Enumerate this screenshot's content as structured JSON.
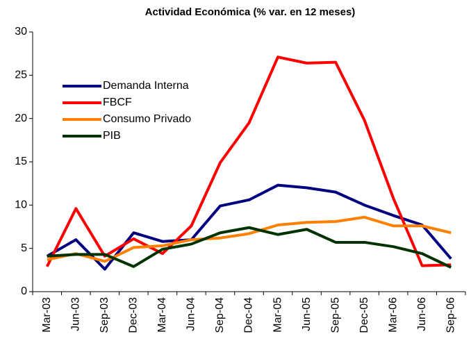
{
  "chart_data": {
    "type": "line",
    "title": "Actividad Económica (% var. en 12 meses)",
    "categories": [
      "Mar-03",
      "Jun-03",
      "Sep-03",
      "Dec-03",
      "Mar-04",
      "Jun-04",
      "Sep-04",
      "Dec-04",
      "Mar-05",
      "Jun-05",
      "Sep-05",
      "Dec-05",
      "Mar-06",
      "Jun-06",
      "Sep-06"
    ],
    "series": [
      {
        "name": "Demanda Interna",
        "color": "#000080",
        "values": [
          4.1,
          6.0,
          2.6,
          6.8,
          5.8,
          6.0,
          9.9,
          10.6,
          12.3,
          12.0,
          11.5,
          10.0,
          8.8,
          7.7,
          3.8
        ]
      },
      {
        "name": "FBCF",
        "color": "#ff0000",
        "values": [
          2.9,
          9.6,
          4.1,
          6.1,
          4.4,
          7.6,
          14.9,
          19.5,
          27.1,
          26.4,
          26.5,
          19.8,
          10.8,
          3.0,
          3.1
        ]
      },
      {
        "name": "Consumo Privado",
        "color": "#ff8000",
        "values": [
          3.7,
          4.4,
          3.5,
          5.1,
          5.3,
          6.0,
          6.2,
          6.7,
          7.7,
          8.0,
          8.1,
          8.6,
          7.6,
          7.6,
          6.8
        ]
      },
      {
        "name": "PIB",
        "color": "#003300",
        "values": [
          4.1,
          4.3,
          4.3,
          2.9,
          4.9,
          5.5,
          6.8,
          7.4,
          6.6,
          7.2,
          5.7,
          5.7,
          5.2,
          4.4,
          2.8
        ]
      }
    ],
    "ylim": [
      0,
      30
    ],
    "yticks": [
      0,
      5,
      10,
      15,
      20,
      25,
      30
    ],
    "grid": false,
    "legend": "upper left"
  }
}
